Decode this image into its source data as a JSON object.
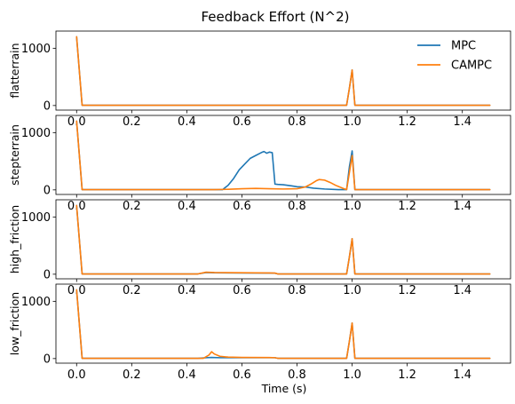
{
  "chart_data": {
    "type": "line",
    "title": "Feedback Effort (N^2)",
    "xlabel": "Time (s)",
    "xlim": [
      -0.075,
      1.575
    ],
    "ylim": [
      -80,
      1300
    ],
    "x_ticks": [
      0.0,
      0.2,
      0.4,
      0.6,
      0.8,
      1.0,
      1.2,
      1.4
    ],
    "x_tick_labels": [
      "0.0",
      "0.2",
      "0.4",
      "0.6",
      "0.8",
      "1.0",
      "1.2",
      "1.4"
    ],
    "y_ticks": [
      0,
      1000
    ],
    "y_tick_labels": [
      "0",
      "1000"
    ],
    "legend": {
      "placement": "top-right",
      "entries": [
        "MPC",
        "CAMPC"
      ]
    },
    "colors": {
      "MPC": "#1f77b4",
      "CAMPC": "#ff7f0e"
    },
    "grid": false,
    "subplots": [
      {
        "ylabel": "flatterrain",
        "series": [
          {
            "name": "MPC",
            "x": [
              0,
              0.02,
              0.98,
              0.99,
              1.0,
              1.01,
              1.5
            ],
            "y": [
              1200,
              5,
              5,
              300,
              620,
              5,
              5
            ]
          },
          {
            "name": "CAMPC",
            "x": [
              0,
              0.02,
              0.98,
              0.99,
              1.0,
              1.01,
              1.5
            ],
            "y": [
              1200,
              5,
              5,
              300,
              620,
              5,
              5
            ]
          }
        ]
      },
      {
        "ylabel": "stepterrain",
        "series": [
          {
            "name": "MPC",
            "x": [
              0,
              0.02,
              0.53,
              0.55,
              0.57,
              0.59,
              0.61,
              0.63,
              0.65,
              0.67,
              0.68,
              0.69,
              0.7,
              0.71,
              0.72,
              0.73,
              0.75,
              0.78,
              0.8,
              0.83,
              0.86,
              0.9,
              0.95,
              0.98,
              0.99,
              1.0,
              1.01,
              1.5
            ],
            "y": [
              1200,
              5,
              5,
              80,
              200,
              350,
              450,
              550,
              600,
              650,
              670,
              640,
              660,
              650,
              100,
              95,
              90,
              70,
              55,
              50,
              30,
              15,
              5,
              5,
              400,
              680,
              5,
              5
            ]
          },
          {
            "name": "CAMPC",
            "x": [
              0,
              0.02,
              0.5,
              0.55,
              0.6,
              0.65,
              0.7,
              0.75,
              0.8,
              0.83,
              0.85,
              0.87,
              0.88,
              0.9,
              0.92,
              0.94,
              0.97,
              0.98,
              0.99,
              1.0,
              1.01,
              1.5
            ],
            "y": [
              1200,
              5,
              5,
              10,
              20,
              25,
              20,
              15,
              20,
              50,
              100,
              160,
              180,
              170,
              130,
              80,
              20,
              5,
              300,
              600,
              5,
              5
            ]
          }
        ]
      },
      {
        "ylabel": "high_friction",
        "series": [
          {
            "name": "MPC",
            "x": [
              0,
              0.02,
              0.44,
              0.47,
              0.5,
              0.6,
              0.7,
              0.72,
              0.73,
              0.98,
              0.99,
              1.0,
              1.01,
              1.5
            ],
            "y": [
              1200,
              5,
              5,
              30,
              25,
              22,
              20,
              18,
              5,
              5,
              300,
              620,
              5,
              5
            ]
          },
          {
            "name": "CAMPC",
            "x": [
              0,
              0.02,
              0.44,
              0.47,
              0.5,
              0.6,
              0.7,
              0.72,
              0.73,
              0.98,
              0.99,
              1.0,
              1.01,
              1.5
            ],
            "y": [
              1200,
              5,
              5,
              35,
              30,
              25,
              22,
              20,
              5,
              5,
              300,
              620,
              5,
              5
            ]
          }
        ]
      },
      {
        "ylabel": "low_friction",
        "series": [
          {
            "name": "MPC",
            "x": [
              0,
              0.02,
              0.44,
              0.47,
              0.49,
              0.5,
              0.52,
              0.55,
              0.6,
              0.7,
              0.72,
              0.73,
              0.98,
              0.99,
              1.0,
              1.01,
              1.5
            ],
            "y": [
              1200,
              5,
              5,
              15,
              20,
              18,
              15,
              15,
              15,
              15,
              15,
              5,
              5,
              300,
              620,
              5,
              5
            ]
          },
          {
            "name": "CAMPC",
            "x": [
              0,
              0.02,
              0.46,
              0.48,
              0.49,
              0.5,
              0.52,
              0.55,
              0.6,
              0.7,
              0.72,
              0.73,
              0.98,
              0.99,
              1.0,
              1.01,
              1.5
            ],
            "y": [
              1200,
              5,
              5,
              60,
              120,
              80,
              40,
              25,
              20,
              18,
              15,
              5,
              5,
              300,
              620,
              5,
              5
            ]
          }
        ]
      }
    ]
  }
}
